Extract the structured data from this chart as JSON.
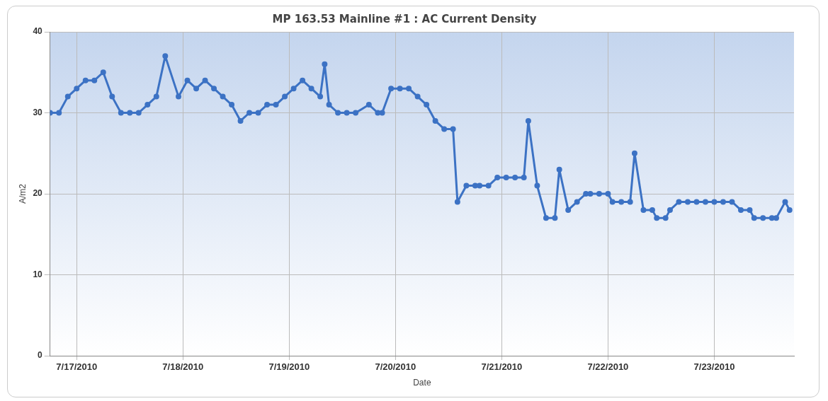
{
  "chart_data": {
    "type": "line",
    "title": "MP 163.53 Mainline #1 : AC Current Density",
    "xlabel": "Date",
    "ylabel": "A/m2",
    "x": [
      "2010-07-16T18:00",
      "2010-07-16T20:00",
      "2010-07-16T22:00",
      "2010-07-17T00:00",
      "2010-07-17T02:00",
      "2010-07-17T04:00",
      "2010-07-17T06:00",
      "2010-07-17T08:00",
      "2010-07-17T10:00",
      "2010-07-17T12:00",
      "2010-07-17T14:00",
      "2010-07-17T16:00",
      "2010-07-17T18:00",
      "2010-07-17T20:00",
      "2010-07-17T23:00",
      "2010-07-18T01:00",
      "2010-07-18T03:00",
      "2010-07-18T05:00",
      "2010-07-18T07:00",
      "2010-07-18T09:00",
      "2010-07-18T11:00",
      "2010-07-18T13:00",
      "2010-07-18T15:00",
      "2010-07-18T17:00",
      "2010-07-18T19:00",
      "2010-07-18T21:00",
      "2010-07-18T23:00",
      "2010-07-19T01:00",
      "2010-07-19T03:00",
      "2010-07-19T05:00",
      "2010-07-19T07:00",
      "2010-07-19T08:00",
      "2010-07-19T09:00",
      "2010-07-19T11:00",
      "2010-07-19T13:00",
      "2010-07-19T15:00",
      "2010-07-19T18:00",
      "2010-07-19T20:00",
      "2010-07-19T21:00",
      "2010-07-19T23:00",
      "2010-07-20T01:00",
      "2010-07-20T03:00",
      "2010-07-20T05:00",
      "2010-07-20T07:00",
      "2010-07-20T09:00",
      "2010-07-20T11:00",
      "2010-07-20T13:00",
      "2010-07-20T14:00",
      "2010-07-20T16:00",
      "2010-07-20T18:00",
      "2010-07-20T19:00",
      "2010-07-20T21:00",
      "2010-07-20T23:00",
      "2010-07-21T01:00",
      "2010-07-21T03:00",
      "2010-07-21T05:00",
      "2010-07-21T06:00",
      "2010-07-21T08:00",
      "2010-07-21T10:00",
      "2010-07-21T12:00",
      "2010-07-21T13:00",
      "2010-07-21T15:00",
      "2010-07-21T17:00",
      "2010-07-21T19:00",
      "2010-07-21T20:00",
      "2010-07-21T22:00",
      "2010-07-22T00:00",
      "2010-07-22T01:00",
      "2010-07-22T03:00",
      "2010-07-22T05:00",
      "2010-07-22T06:00",
      "2010-07-22T08:00",
      "2010-07-22T10:00",
      "2010-07-22T11:00",
      "2010-07-22T13:00",
      "2010-07-22T14:00",
      "2010-07-22T16:00",
      "2010-07-22T18:00",
      "2010-07-22T20:00",
      "2010-07-22T22:00",
      "2010-07-23T00:00",
      "2010-07-23T02:00",
      "2010-07-23T04:00",
      "2010-07-23T06:00",
      "2010-07-23T08:00",
      "2010-07-23T09:00",
      "2010-07-23T11:00",
      "2010-07-23T13:00",
      "2010-07-23T14:00",
      "2010-07-23T16:00",
      "2010-07-23T17:00"
    ],
    "series": [
      {
        "color": "#3c72c4",
        "values": [
          30,
          30,
          32,
          33,
          34,
          34,
          35,
          32,
          30,
          30,
          30,
          31,
          32,
          37,
          32,
          34,
          33,
          34,
          33,
          32,
          31,
          29,
          30,
          30,
          31,
          31,
          32,
          33,
          34,
          33,
          32,
          36,
          31,
          30,
          30,
          30,
          31,
          30,
          30,
          33,
          33,
          33,
          32,
          31,
          29,
          28,
          28,
          19,
          21,
          21,
          21,
          21,
          22,
          22,
          22,
          22,
          29,
          21,
          17,
          17,
          23,
          18,
          19,
          20,
          20,
          20,
          20,
          19,
          19,
          19,
          25,
          18,
          18,
          17,
          17,
          18,
          19,
          19,
          19,
          19,
          19,
          19,
          19,
          18,
          18,
          17,
          17,
          17,
          17,
          19,
          18
        ]
      }
    ],
    "xlim": [
      "2010-07-16T18:00",
      "2010-07-23T18:00"
    ],
    "xticks": [
      {
        "value": "2010-07-17",
        "label": "7/17/2010"
      },
      {
        "value": "2010-07-18",
        "label": "7/18/2010"
      },
      {
        "value": "2010-07-19",
        "label": "7/19/2010"
      },
      {
        "value": "2010-07-20",
        "label": "7/20/2010"
      },
      {
        "value": "2010-07-21",
        "label": "7/21/2010"
      },
      {
        "value": "2010-07-22",
        "label": "7/22/2010"
      },
      {
        "value": "2010-07-23",
        "label": "7/23/2010"
      }
    ],
    "ylim": [
      0,
      40
    ],
    "yticks": [
      0,
      10,
      20,
      30,
      40
    ],
    "grid": true,
    "legend": false,
    "marker": "circle",
    "line_style": "solid"
  }
}
